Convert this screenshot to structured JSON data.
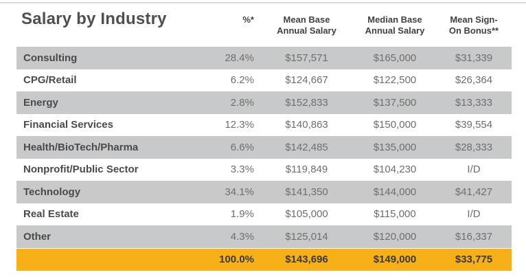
{
  "page": {
    "title": "Salary by Industry"
  },
  "columns": {
    "pct": "%*",
    "mean": {
      "line1": "Mean Base",
      "line2": "Annual Salary"
    },
    "median": {
      "line1": "Median Base",
      "line2": "Annual Salary"
    },
    "bonus": {
      "line1": "Mean Sign-",
      "line2": "On Bonus**"
    }
  },
  "rows": [
    {
      "industry": "Consulting",
      "pct": "28.4%",
      "mean_base": "$157,571",
      "median_base": "$165,000",
      "bonus": "$31,339"
    },
    {
      "industry": "CPG/Retail",
      "pct": "6.2%",
      "mean_base": "$124,667",
      "median_base": "$122,500",
      "bonus": "$26,364"
    },
    {
      "industry": "Energy",
      "pct": "2.8%",
      "mean_base": "$152,833",
      "median_base": "$137,500",
      "bonus": "$13,333"
    },
    {
      "industry": "Financial Services",
      "pct": "12.3%",
      "mean_base": "$140,863",
      "median_base": "$150,000",
      "bonus": "$39,554"
    },
    {
      "industry": "Health/BioTech/Pharma",
      "pct": "6.6%",
      "mean_base": "$142,485",
      "median_base": "$135,000",
      "bonus": "$28,333"
    },
    {
      "industry": "Nonprofit/Public Sector",
      "pct": "3.3%",
      "mean_base": "$119,849",
      "median_base": "$104,230",
      "bonus": "I/D"
    },
    {
      "industry": "Technology",
      "pct": "34.1%",
      "mean_base": "$141,350",
      "median_base": "$144,000",
      "bonus": "$41,427"
    },
    {
      "industry": "Real Estate",
      "pct": "1.9%",
      "mean_base": "$105,000",
      "median_base": "$115,000",
      "bonus": "I/D"
    },
    {
      "industry": "Other",
      "pct": "4.3%",
      "mean_base": "$125,014",
      "median_base": "$120,000",
      "bonus": "$16,337"
    }
  ],
  "total": {
    "pct": "100.0%",
    "mean_base": "$143,696",
    "median_base": "$149,000",
    "bonus": "$33,775"
  },
  "colors": {
    "stripe_gray": "#c8c9ca",
    "total_orange": "#f8b019",
    "value_text": "#6e6e6e",
    "label_text": "#4a4a4a",
    "top_rule": "#d9d9d9"
  }
}
